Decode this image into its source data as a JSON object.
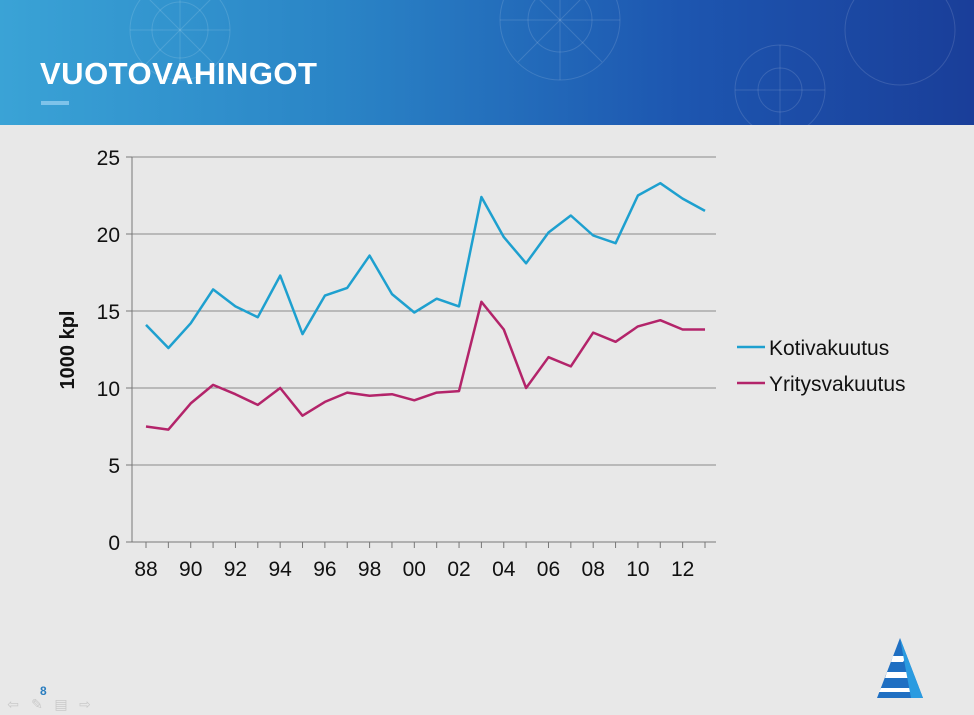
{
  "slide": {
    "title": "VUOTOVAHINGOT",
    "number": "8"
  },
  "nav_icons": [
    "arrow-left-icon",
    "pen-icon",
    "menu-icon",
    "arrow-right-icon"
  ],
  "colors": {
    "header_start": "#3aa3d6",
    "header_end": "#1a3e99",
    "kotivakuutus": "#1ea0cf",
    "yritysvakuutus": "#b3246a",
    "background": "#e8e8e8"
  },
  "chart_data": {
    "type": "line",
    "title": "",
    "xlabel": "",
    "ylabel": "1000 kpl",
    "ylim": [
      0,
      25
    ],
    "yticks": [
      "0",
      "5",
      "10",
      "15",
      "20",
      "25"
    ],
    "x": [
      "88",
      "89",
      "90",
      "91",
      "92",
      "93",
      "94",
      "95",
      "96",
      "97",
      "98",
      "99",
      "00",
      "01",
      "02",
      "03",
      "04",
      "05",
      "06",
      "07",
      "08",
      "09",
      "10",
      "11",
      "12",
      "13"
    ],
    "xtick_labels": [
      "88",
      "90",
      "92",
      "94",
      "96",
      "98",
      "00",
      "02",
      "04",
      "06",
      "08",
      "10",
      "12"
    ],
    "grid": true,
    "legend_position": "right",
    "series": [
      {
        "name": "Kotivakuutus",
        "color": "#1ea0cf",
        "values": [
          14.1,
          12.6,
          14.2,
          16.4,
          15.3,
          14.6,
          17.3,
          13.5,
          16.0,
          16.5,
          18.6,
          16.1,
          14.9,
          15.8,
          15.3,
          22.4,
          19.8,
          18.1,
          20.1,
          21.2,
          19.9,
          19.4,
          22.5,
          23.3,
          22.3,
          21.5
        ]
      },
      {
        "name": "Yritysvakuutus",
        "color": "#b3246a",
        "values": [
          7.5,
          7.3,
          9.0,
          10.2,
          9.6,
          8.9,
          10.0,
          8.2,
          9.1,
          9.7,
          9.5,
          9.6,
          9.2,
          9.7,
          9.8,
          15.6,
          13.8,
          10.0,
          12.0,
          11.4,
          13.6,
          13.0,
          14.0,
          14.4,
          13.8,
          13.8
        ]
      }
    ]
  }
}
